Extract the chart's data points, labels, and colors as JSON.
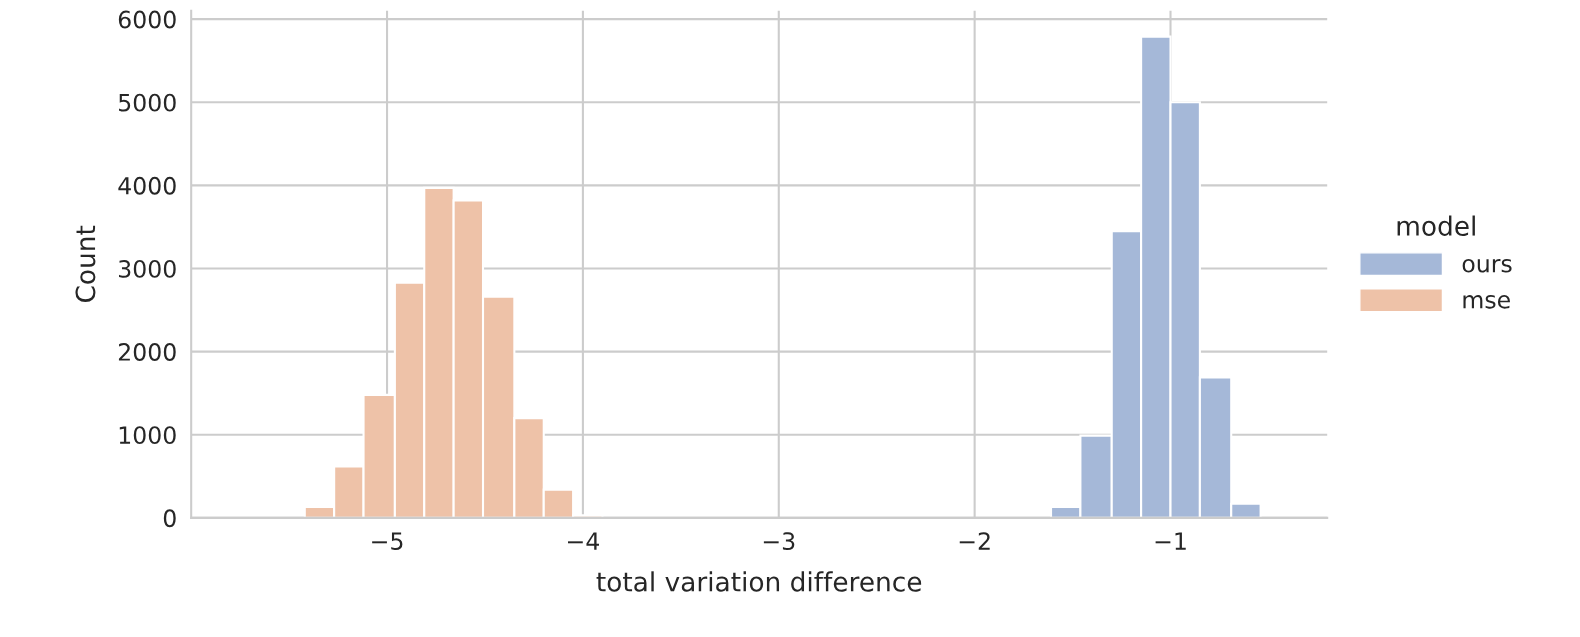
{
  "chart_data": {
    "type": "histogram",
    "xlabel": "total variation difference",
    "ylabel": "Count",
    "legend_title": "model",
    "bins": [
      -5.42,
      -5.27,
      -5.12,
      -4.96,
      -4.81,
      -4.66,
      -4.51,
      -4.35,
      -4.2,
      -4.05,
      -3.9,
      -1.61,
      -1.46,
      -1.3,
      -1.15,
      -1,
      -0.85,
      -0.69,
      -0.54
    ],
    "series": [
      {
        "name": "ours",
        "color": "#a5b8d8",
        "values": [
          null,
          null,
          null,
          null,
          null,
          null,
          null,
          null,
          null,
          null,
          null,
          130,
          990,
          3450,
          5790,
          5000,
          1690,
          170
        ]
      },
      {
        "name": "mse",
        "color": "#eec2a8",
        "values": [
          130,
          620,
          1480,
          2830,
          3970,
          3820,
          2660,
          1200,
          340,
          30,
          null,
          null,
          null,
          null,
          null,
          null,
          null,
          null
        ]
      }
    ],
    "xlim": [
      -6.0,
      -0.2
    ],
    "ylim": [
      0,
      6100
    ],
    "xticks": [
      {
        "value": -5,
        "label": "−5"
      },
      {
        "value": -4,
        "label": "−4"
      },
      {
        "value": -3,
        "label": "−3"
      },
      {
        "value": -2,
        "label": "−2"
      },
      {
        "value": -1,
        "label": "−1"
      }
    ],
    "yticks": [
      0,
      1000,
      2000,
      3000,
      4000,
      5000,
      6000
    ],
    "grid": true,
    "legend": "right"
  }
}
